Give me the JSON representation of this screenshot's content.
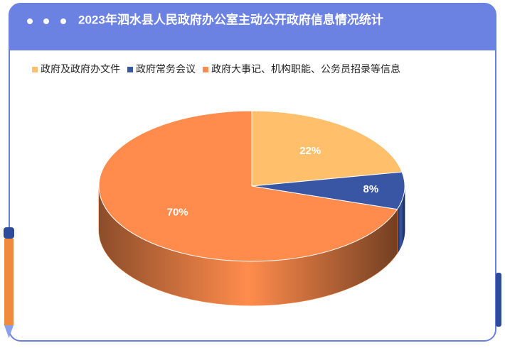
{
  "chart_data": {
    "type": "pie",
    "title": "2023年泗水县人民政府办公室主动公开政府信息情况统计",
    "categories": [
      "政府及政府办文件",
      "政府常务会议",
      "政府大事记、机构职能、公务员招录等信息"
    ],
    "values": [
      22,
      8,
      70
    ],
    "value_labels": [
      "22%",
      "8%",
      "70%"
    ],
    "colors": [
      "#ffbf6b",
      "#3856a3",
      "#ff8c4c"
    ],
    "legend": "top"
  }
}
